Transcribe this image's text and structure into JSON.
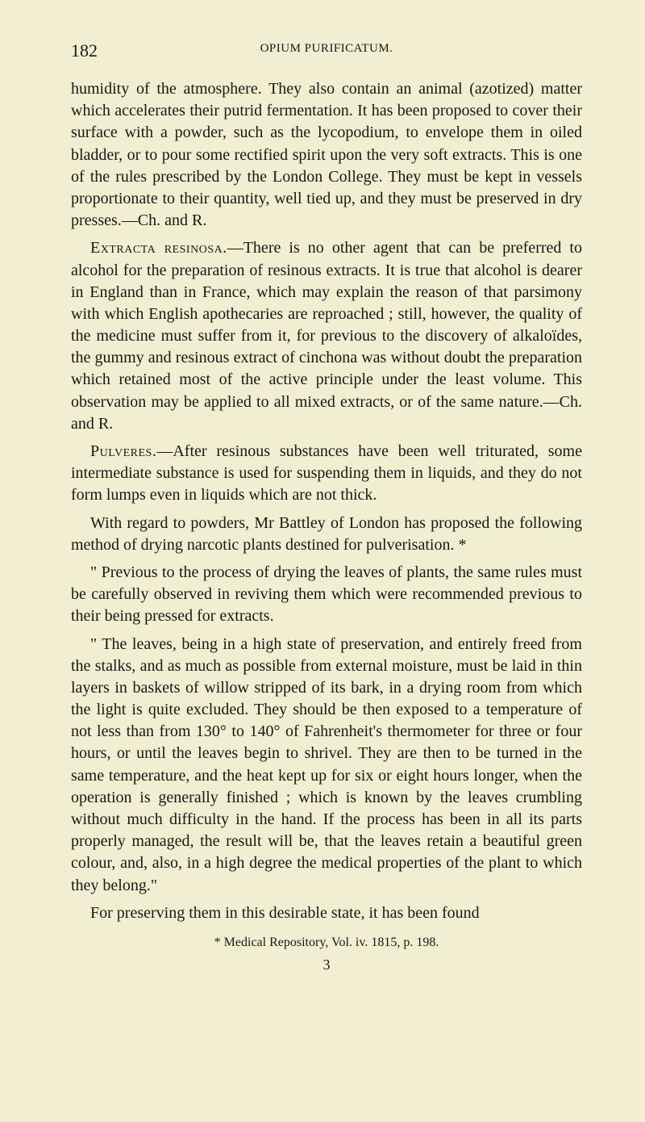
{
  "page_number": "182",
  "running_header": "OPIUM PURIFICATUM.",
  "paragraphs": [
    {
      "class": "no-indent",
      "text": "humidity of the atmosphere. They also contain an animal (azotized) matter which accelerates their putrid fermentation. It has been proposed to cover their surface with a powder, such as the lycopodium, to envelope them in oiled bladder, or to pour some rectified spirit upon the very soft extracts. This is one of the rules prescribed by the London College. They must be kept in vessels proportionate to their quantity, well tied up, and they must be preserved in dry presses.—Ch. and R."
    },
    {
      "class": "indent",
      "lead": "Extracta resinosa.",
      "text": "—There is no other agent that can be preferred to alcohol for the preparation of resinous extracts. It is true that alcohol is dearer in England than in France, which may explain the reason of that parsimony with which English apothecaries are reproached ; still, however, the quality of the medicine must suffer from it, for previous to the discovery of alkaloïdes, the gummy and resinous extract of cinchona was without doubt the preparation which retained most of the active principle under the least volume. This observation may be applied to all mixed extracts, or of the same nature.—Ch. and R."
    },
    {
      "class": "indent",
      "lead": "Pulveres.",
      "text": "—After resinous substances have been well triturated, some intermediate substance is used for suspending them in liquids, and they do not form lumps even in liquids which are not thick."
    },
    {
      "class": "indent",
      "text": "With regard to powders, Mr Battley of London has proposed the following method of drying narcotic plants destined for pulverisation. *"
    },
    {
      "class": "indent",
      "text": "\" Previous to the process of drying the leaves of plants, the same rules must be carefully observed in reviving them which were recommended previous to their being pressed for extracts."
    },
    {
      "class": "indent",
      "text": "\" The leaves, being in a high state of preservation, and entirely freed from the stalks, and as much as possible from external moisture, must be laid in thin layers in baskets of willow stripped of its bark, in a drying room from which the light is quite excluded. They should be then exposed to a temperature of not less than from 130° to 140° of Fahrenheit's thermometer for three or four hours, or until the leaves begin to shrivel. They are then to be turned in the same temperature, and the heat kept up for six or eight hours longer, when the operation is generally finished ; which is known by the leaves crumbling without much difficulty in the hand. If the process has been in all its parts properly managed, the result will be, that the leaves retain a beautiful green colour, and, also, in a high degree the medical properties of the plant to which they belong.\""
    },
    {
      "class": "indent",
      "text": "For preserving them in this desirable state, it has been found"
    }
  ],
  "footnote": "* Medical Repository, Vol. iv. 1815, p. 198.",
  "signature": "3"
}
